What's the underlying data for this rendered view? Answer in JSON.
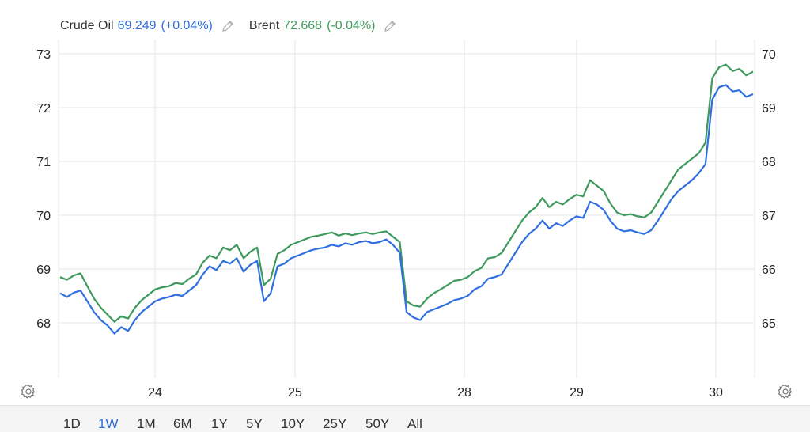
{
  "legend": {
    "series": [
      {
        "name": "Crude Oil",
        "value": "69.249",
        "change": "(+0.04%)",
        "color": "#2f6fdf",
        "icon": "edit-pencil-icon"
      },
      {
        "name": "Brent",
        "value": "72.668",
        "change": "(-0.04%)",
        "color": "#3d9a5c",
        "icon": "edit-pencil-icon"
      }
    ]
  },
  "controls": {
    "settings_icon": "gear-icon",
    "ranges": [
      "1D",
      "1W",
      "1M",
      "6M",
      "1Y",
      "5Y",
      "10Y",
      "25Y",
      "50Y",
      "All"
    ],
    "active_range": "1W"
  },
  "chart_data": {
    "type": "line",
    "title": "",
    "xlabel": "",
    "x_ticks": [
      "24",
      "25",
      "28",
      "29",
      "30"
    ],
    "left_axis": {
      "ticks": [
        "68",
        "69",
        "70",
        "71",
        "72",
        "73"
      ],
      "range": [
        67,
        73
      ]
    },
    "right_axis": {
      "ticks": [
        "65",
        "66",
        "67",
        "68",
        "69",
        "70"
      ],
      "range": [
        64,
        70
      ]
    },
    "grid": true,
    "series": [
      {
        "name": "Crude Oil",
        "axis": "right",
        "color": "#2f6fdf",
        "values": [
          65.55,
          65.48,
          65.56,
          65.6,
          65.4,
          65.2,
          65.05,
          64.95,
          64.8,
          64.92,
          64.85,
          65.05,
          65.2,
          65.3,
          65.4,
          65.45,
          65.48,
          65.52,
          65.5,
          65.6,
          65.7,
          65.9,
          66.05,
          65.98,
          66.15,
          66.1,
          66.2,
          65.95,
          66.08,
          66.15,
          65.4,
          65.55,
          66.05,
          66.1,
          66.2,
          66.25,
          66.3,
          66.35,
          66.38,
          66.4,
          66.45,
          66.42,
          66.48,
          66.45,
          66.5,
          66.52,
          66.48,
          66.5,
          66.55,
          66.45,
          66.3,
          65.2,
          65.1,
          65.05,
          65.2,
          65.25,
          65.3,
          65.35,
          65.42,
          65.45,
          65.5,
          65.62,
          65.68,
          65.82,
          65.85,
          65.9,
          66.1,
          66.3,
          66.5,
          66.65,
          66.75,
          66.9,
          66.75,
          66.85,
          66.8,
          66.9,
          66.98,
          66.95,
          67.25,
          67.2,
          67.1,
          66.9,
          66.75,
          66.7,
          66.72,
          66.68,
          66.65,
          66.72,
          66.9,
          67.1,
          67.3,
          67.45,
          67.55,
          67.65,
          67.78,
          67.95,
          69.15,
          69.38,
          69.42,
          69.3,
          69.32,
          69.2,
          69.25
        ]
      },
      {
        "name": "Brent",
        "axis": "left",
        "color": "#3d9a5c",
        "values": [
          68.85,
          68.8,
          68.88,
          68.92,
          68.68,
          68.45,
          68.28,
          68.15,
          68.02,
          68.12,
          68.08,
          68.28,
          68.42,
          68.52,
          68.62,
          68.66,
          68.68,
          68.74,
          68.72,
          68.82,
          68.9,
          69.12,
          69.25,
          69.2,
          69.4,
          69.35,
          69.45,
          69.2,
          69.32,
          69.4,
          68.7,
          68.82,
          69.28,
          69.35,
          69.45,
          69.5,
          69.55,
          69.6,
          69.62,
          69.65,
          69.68,
          69.62,
          69.66,
          69.63,
          69.66,
          69.68,
          69.65,
          69.68,
          69.7,
          69.6,
          69.5,
          68.4,
          68.32,
          68.3,
          68.45,
          68.55,
          68.62,
          68.7,
          68.78,
          68.8,
          68.85,
          68.96,
          69.02,
          69.2,
          69.22,
          69.3,
          69.5,
          69.7,
          69.9,
          70.05,
          70.15,
          70.32,
          70.15,
          70.25,
          70.2,
          70.3,
          70.38,
          70.35,
          70.65,
          70.55,
          70.45,
          70.22,
          70.05,
          70.0,
          70.02,
          69.98,
          69.96,
          70.05,
          70.25,
          70.45,
          70.65,
          70.85,
          70.95,
          71.05,
          71.15,
          71.35,
          72.55,
          72.75,
          72.8,
          72.68,
          72.72,
          72.6,
          72.668
        ]
      }
    ]
  }
}
